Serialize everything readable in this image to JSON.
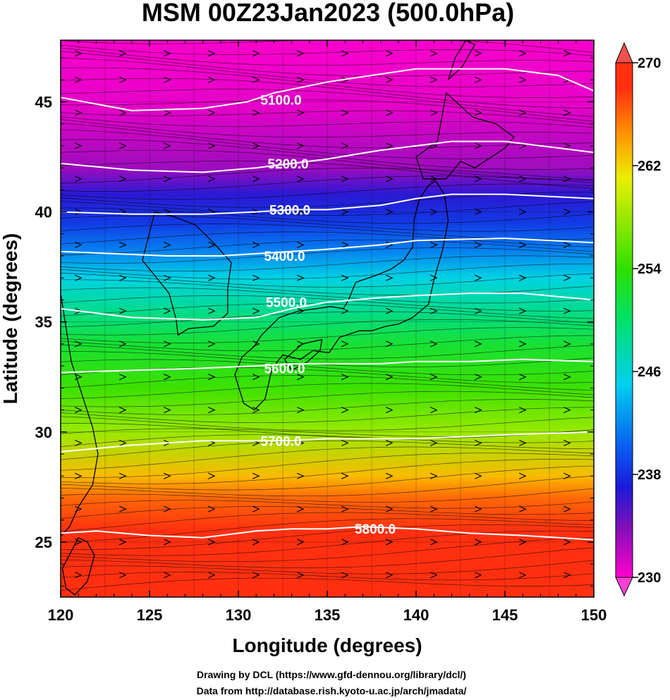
{
  "chart_data": {
    "type": "heatmap",
    "title": "MSM 00Z23Jan2023 (500.0hPa)",
    "xlabel": "Longitude (degrees)",
    "ylabel": "Latitude  (degrees)",
    "xlim": [
      120,
      150
    ],
    "ylim": [
      22.5,
      47.8
    ],
    "x_ticks": [
      120,
      125,
      130,
      135,
      140,
      145,
      150
    ],
    "y_ticks": [
      25,
      30,
      35,
      40,
      45
    ],
    "shading": {
      "colorbar_range": [
        230,
        270
      ],
      "colorbar_labels": [
        "270",
        "262",
        "254",
        "246",
        "238",
        "230"
      ],
      "colorbar_values": [
        270,
        262,
        254,
        246,
        238,
        230
      ],
      "colors": [
        "#ff00cc",
        "#7d10b8",
        "#1a1ad8",
        "#0a5af0",
        "#00d0f0",
        "#00e06a",
        "#30e000",
        "#eaf000",
        "#ffa000",
        "#ff3010"
      ],
      "color_stops": [
        230,
        234,
        237,
        240,
        245,
        250,
        254,
        261,
        264,
        268
      ],
      "field_rows": [
        {
          "lat": 47.8,
          "value": 230.2
        },
        {
          "lat": 44.8,
          "value": 230.8
        },
        {
          "lat": 42.0,
          "value": 233.0
        },
        {
          "lat": 40.8,
          "value": 236.5
        },
        {
          "lat": 39.5,
          "value": 238.5
        },
        {
          "lat": 38.3,
          "value": 241.5
        },
        {
          "lat": 37.0,
          "value": 245.5
        },
        {
          "lat": 35.6,
          "value": 248.5
        },
        {
          "lat": 34.0,
          "value": 252.0
        },
        {
          "lat": 32.0,
          "value": 254.5
        },
        {
          "lat": 30.0,
          "value": 258.0
        },
        {
          "lat": 28.0,
          "value": 263.0
        },
        {
          "lat": 27.0,
          "value": 266.0
        },
        {
          "lat": 25.5,
          "value": 268.0
        },
        {
          "lat": 22.5,
          "value": 269.5
        }
      ]
    },
    "contours": [
      {
        "label": "5100.0",
        "value": 5100,
        "label_at": [
          132.4,
          45.1
        ],
        "lon": [
          120,
          124,
          128,
          130.5,
          132,
          135,
          140,
          145,
          148,
          150
        ],
        "lat": [
          45.2,
          44.6,
          44.7,
          45.0,
          45.4,
          45.9,
          46.5,
          46.5,
          46.2,
          45.5
        ]
      },
      {
        "label": "5200.0",
        "value": 5200,
        "label_at": [
          132.8,
          42.2
        ],
        "lon": [
          120,
          124,
          128,
          131,
          133,
          135,
          138,
          140,
          142,
          145,
          150
        ],
        "lat": [
          42.2,
          41.9,
          41.8,
          42.0,
          42.2,
          42.4,
          42.8,
          43.0,
          43.2,
          43.2,
          42.7
        ]
      },
      {
        "label": "5300.0",
        "value": 5300,
        "label_at": [
          132.9,
          40.1
        ],
        "lon": [
          120,
          124,
          128,
          131,
          133,
          135,
          138,
          140,
          142,
          145,
          150
        ],
        "lat": [
          40.0,
          39.9,
          39.9,
          40.0,
          40.1,
          40.1,
          40.3,
          40.6,
          40.8,
          40.8,
          40.6
        ]
      },
      {
        "label": "5400.0",
        "value": 5400,
        "label_at": [
          132.6,
          38.0
        ],
        "lon": [
          120,
          123,
          126,
          129,
          131,
          133,
          135,
          138,
          140,
          145,
          150
        ],
        "lat": [
          38.2,
          38.1,
          38.0,
          38.0,
          38.1,
          38.2,
          38.3,
          38.5,
          38.7,
          38.8,
          38.6
        ]
      },
      {
        "label": "5500.0",
        "value": 5500,
        "label_at": [
          132.7,
          35.9
        ],
        "lon": [
          120,
          124,
          128,
          131,
          133,
          135,
          138,
          140,
          143,
          146,
          150
        ],
        "lat": [
          35.6,
          35.2,
          35.1,
          35.2,
          35.6,
          35.9,
          36.1,
          36.2,
          36.3,
          36.3,
          36.0
        ]
      },
      {
        "label": "5600.0",
        "value": 5600,
        "label_at": [
          132.6,
          32.9
        ],
        "lon": [
          120,
          124,
          128,
          131,
          133,
          135,
          138,
          140,
          143,
          146,
          150
        ],
        "lat": [
          32.7,
          32.8,
          32.9,
          33.0,
          33.1,
          33.1,
          33.1,
          33.2,
          33.2,
          33.3,
          33.2
        ]
      },
      {
        "label": "5700.0",
        "value": 5700,
        "label_at": [
          132.4,
          29.6
        ],
        "lon": [
          120,
          124,
          128,
          131,
          133,
          135,
          138,
          140,
          143,
          146,
          150
        ],
        "lat": [
          29.1,
          29.4,
          29.6,
          29.6,
          29.6,
          29.7,
          29.7,
          29.7,
          29.8,
          29.9,
          30.0
        ]
      },
      {
        "label": "5800.0",
        "value": 5800,
        "label_at": [
          137.7,
          25.6
        ],
        "lon": [
          120,
          122,
          125,
          128,
          131,
          133,
          135,
          137,
          140,
          143,
          146,
          150
        ],
        "lat": [
          25.4,
          25.5,
          25.3,
          25.2,
          25.5,
          25.6,
          25.6,
          25.7,
          25.6,
          25.4,
          25.3,
          25.1
        ]
      }
    ],
    "streamlines": {
      "description": "westerly flow",
      "lon_start": 120,
      "lat_range": [
        22.8,
        47.8
      ],
      "count": 70
    },
    "arrow_grid": {
      "lon": [
        121,
        123.5,
        126,
        128.5,
        131,
        133.5,
        136,
        138.5,
        141,
        143.5,
        146,
        148.5
      ],
      "lat": [
        23.5,
        25,
        26.5,
        28,
        29.5,
        31,
        32.5,
        34,
        35.5,
        37,
        38.5,
        40,
        41.5,
        43,
        44.5,
        46,
        47.2
      ]
    },
    "coastlines": [
      {
        "name": "Japan",
        "lon": [
          130.9,
          130.2,
          129.8,
          130.3,
          130.9,
          131.5,
          131.9,
          132.5,
          133.5,
          134.2,
          135.1,
          135.7,
          136.8,
          137.5,
          138.3,
          139.0,
          139.8,
          140.7,
          141.0,
          141.5,
          141.8,
          141.6,
          141.1,
          140.7,
          140.2,
          139.9,
          139.8,
          139.3,
          138.6,
          137.7,
          136.6,
          136.2,
          135.9,
          135.2,
          134.4,
          133.4,
          132.3,
          131.3,
          130.9
        ]
      },
      {
        "name": "Hokkaido",
        "lon": [
          141.7,
          140.4,
          140.0,
          141.2,
          141.7,
          143.2,
          144.5,
          145.5,
          145.0,
          143.3,
          142.5,
          141.7
        ]
      },
      {
        "name": "Shikoku",
        "lon": [
          132.6,
          133.6,
          134.7,
          134.6,
          133.9,
          133.0,
          132.6
        ]
      },
      {
        "name": "Korea",
        "lon": [
          124.6,
          125.3,
          126.1,
          126.5,
          126.6,
          127.2,
          128.6,
          129.4,
          129.4,
          129.6,
          128.6,
          127.6,
          126.3,
          125.3,
          124.6
        ]
      },
      {
        "name": "China coast",
        "lon": [
          120.0,
          120.6,
          121.4,
          121.8,
          122.1,
          121.8,
          121.0,
          120.5,
          119.6,
          118.7,
          120.0
        ]
      },
      {
        "name": "Taiwan",
        "lon": [
          121.0,
          121.5,
          121.9,
          121.5,
          120.8,
          120.3,
          120.1,
          121.0
        ]
      },
      {
        "name": "Sakhalin",
        "lon": [
          141.8,
          142.6,
          143.3,
          142.8,
          142.2,
          141.8
        ]
      }
    ]
  },
  "footer": {
    "line1": "Drawing by DCL (https://www.gfd-dennou.org/library/dcl/)",
    "line2": "Data from http://database.rish.kyoto-u.ac.jp/arch/jmadata/"
  }
}
